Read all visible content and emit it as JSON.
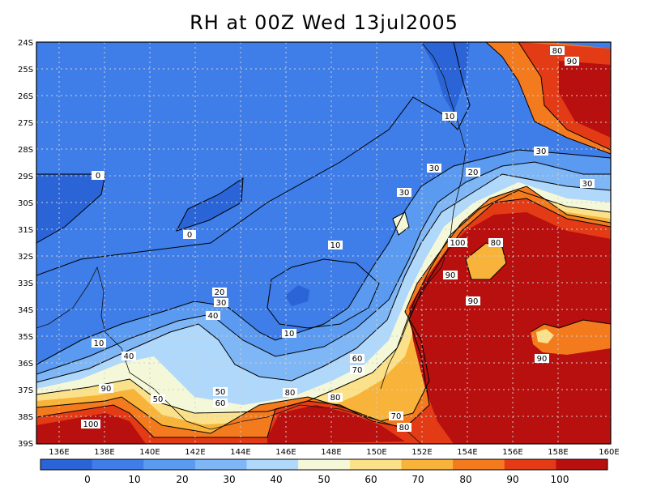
{
  "title": "RH at 00Z Wed 13jul2005",
  "map": {
    "lon_labels": [
      "136E",
      "138E",
      "140E",
      "142E",
      "144E",
      "146E",
      "148E",
      "150E",
      "152E",
      "154E",
      "156E",
      "158E",
      "160E"
    ],
    "lat_labels": [
      "24S",
      "25S",
      "26S",
      "27S",
      "28S",
      "29S",
      "30S",
      "31S",
      "32S",
      "33S",
      "34S",
      "35S",
      "36S",
      "37S",
      "38S",
      "39S"
    ],
    "contour_labels": [
      "0",
      "0",
      "10",
      "10",
      "10",
      "10",
      "20",
      "20",
      "30",
      "30",
      "30",
      "30",
      "30",
      "40",
      "40",
      "50",
      "50",
      "60",
      "60",
      "70",
      "70",
      "80",
      "80",
      "80",
      "80",
      "80",
      "90",
      "90",
      "90",
      "90",
      "90",
      "100",
      "100"
    ]
  },
  "colorbar": {
    "ticks": [
      "0",
      "10",
      "20",
      "30",
      "40",
      "50",
      "60",
      "70",
      "80",
      "90",
      "100"
    ],
    "colors": [
      "#2a64d6",
      "#3f7de8",
      "#5a9af0",
      "#7fb6f5",
      "#b0d8fb",
      "#f5f8d8",
      "#fbe28a",
      "#f8b43a",
      "#f47a1e",
      "#e33b16",
      "#b80f0f"
    ]
  }
}
